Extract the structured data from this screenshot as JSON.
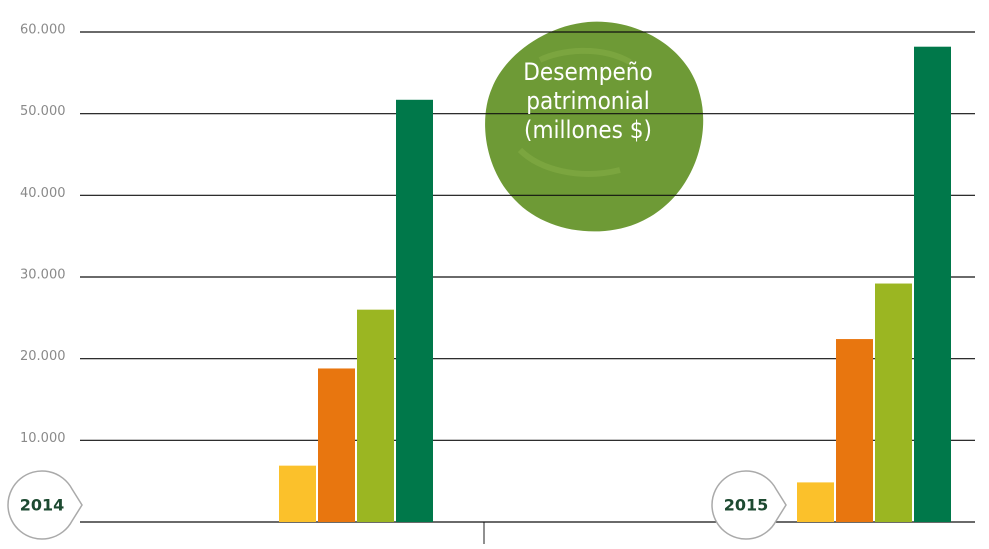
{
  "chart_data": {
    "type": "bar",
    "title": "Desempeño patrimonial (millones $)",
    "categories": [
      "2014",
      "2015"
    ],
    "series": [
      {
        "color": "#fbc12b",
        "values": [
          6900,
          4850
        ]
      },
      {
        "color": "#e8760f",
        "values": [
          18800,
          22400
        ]
      },
      {
        "color": "#9bb622",
        "values": [
          26000,
          29200
        ]
      },
      {
        "color": "#00784a",
        "values": [
          51700,
          58200
        ]
      }
    ],
    "ylim": [
      0,
      60000
    ],
    "yticks": [
      {
        "value": 10000,
        "label": "10.000"
      },
      {
        "value": 20000,
        "label": "20.000"
      },
      {
        "value": 30000,
        "label": "30.000"
      },
      {
        "value": 40000,
        "label": "40.000"
      },
      {
        "value": 50000,
        "label": "50.000"
      },
      {
        "value": 60000,
        "label": "60.000"
      }
    ],
    "grid": true
  }
}
